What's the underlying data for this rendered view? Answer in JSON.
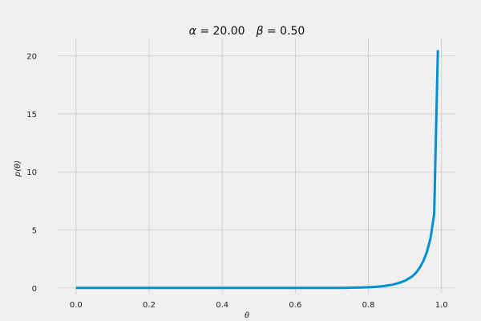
{
  "chart_data": {
    "type": "line",
    "title": "α = 20.00    β = 0.50",
    "title_parts": {
      "alpha_symbol": "α",
      "alpha_text": " = 20.00",
      "beta_symbol": "β",
      "beta_text": " = 0.50"
    },
    "xlabel": "θ",
    "ylabel": "p(θ)",
    "xlim": [
      -0.05,
      1.04
    ],
    "ylim": [
      -0.5,
      21.5
    ],
    "x_ticks": [
      0.0,
      0.2,
      0.4,
      0.6,
      0.8,
      1.0
    ],
    "x_tick_labels": [
      "0.0",
      "0.2",
      "0.4",
      "0.6",
      "0.8",
      "1.0"
    ],
    "y_ticks": [
      0,
      5,
      10,
      15,
      20
    ],
    "y_tick_labels": [
      "0",
      "5",
      "10",
      "15",
      "20"
    ],
    "grid": true,
    "line_color": "#008fd5",
    "series": [
      {
        "x": [
          0.0,
          0.05,
          0.1,
          0.15,
          0.2,
          0.25,
          0.3,
          0.35,
          0.4,
          0.45,
          0.5,
          0.55,
          0.6,
          0.65,
          0.7,
          0.72,
          0.74,
          0.76,
          0.78,
          0.8,
          0.81,
          0.82,
          0.83,
          0.84,
          0.85,
          0.86,
          0.87,
          0.88,
          0.89,
          0.9,
          0.91,
          0.92,
          0.93,
          0.94,
          0.95,
          0.96,
          0.97,
          0.98,
          0.99
        ],
        "values": [
          0.0,
          0.0,
          0.0,
          0.0,
          0.0,
          0.0,
          0.0,
          0.0,
          0.0,
          0.0,
          0.0,
          0.0,
          0.0,
          0.001,
          0.005,
          0.008,
          0.014,
          0.023,
          0.037,
          0.06,
          0.076,
          0.097,
          0.12,
          0.15,
          0.2,
          0.25,
          0.31,
          0.39,
          0.5,
          0.62,
          0.8,
          1.0,
          1.3,
          1.73,
          2.3,
          3.1,
          4.3,
          6.4,
          20.5
        ]
      }
    ]
  }
}
